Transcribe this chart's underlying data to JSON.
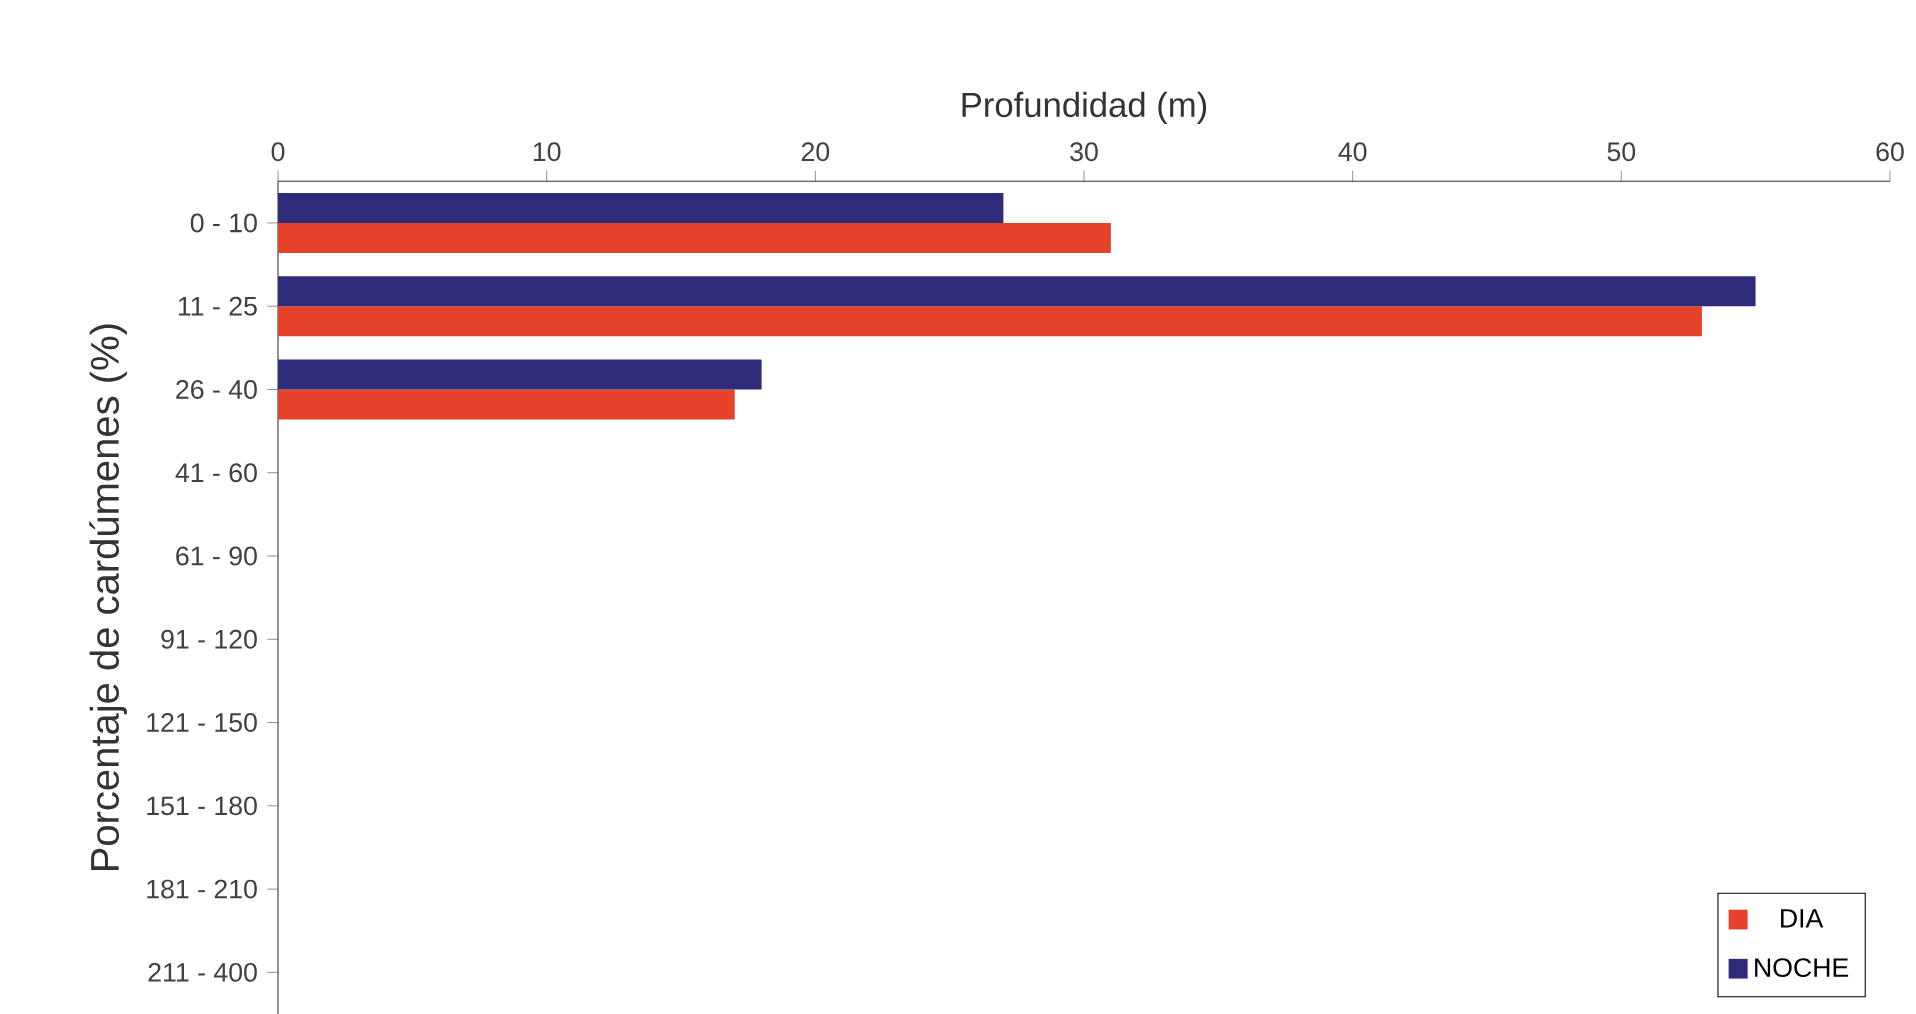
{
  "chart_data": {
    "type": "bar",
    "orientation": "horizontal",
    "xlabel": "Profundidad (m)",
    "ylabel": "Porcentaje de cardúmenes (%)",
    "categories": [
      "0 - 10",
      "11 - 25",
      "26 - 40",
      "41 - 60",
      "61 - 90",
      "91 - 120",
      "121 - 150",
      "151 - 180",
      "181 - 210",
      "211 - 400"
    ],
    "series": [
      {
        "name": "DIA",
        "color": "#e5412b",
        "values": [
          31,
          53,
          17,
          null,
          null,
          null,
          null,
          null,
          null,
          null
        ]
      },
      {
        "name": "NOCHE",
        "color": "#2d2b7a",
        "values": [
          27,
          55,
          18,
          null,
          null,
          null,
          null,
          null,
          null,
          null
        ]
      }
    ],
    "xlim": [
      0,
      60
    ],
    "xticks": [
      0,
      10,
      20,
      30,
      40,
      50,
      60
    ],
    "grid": false,
    "legend": "bottom right"
  }
}
